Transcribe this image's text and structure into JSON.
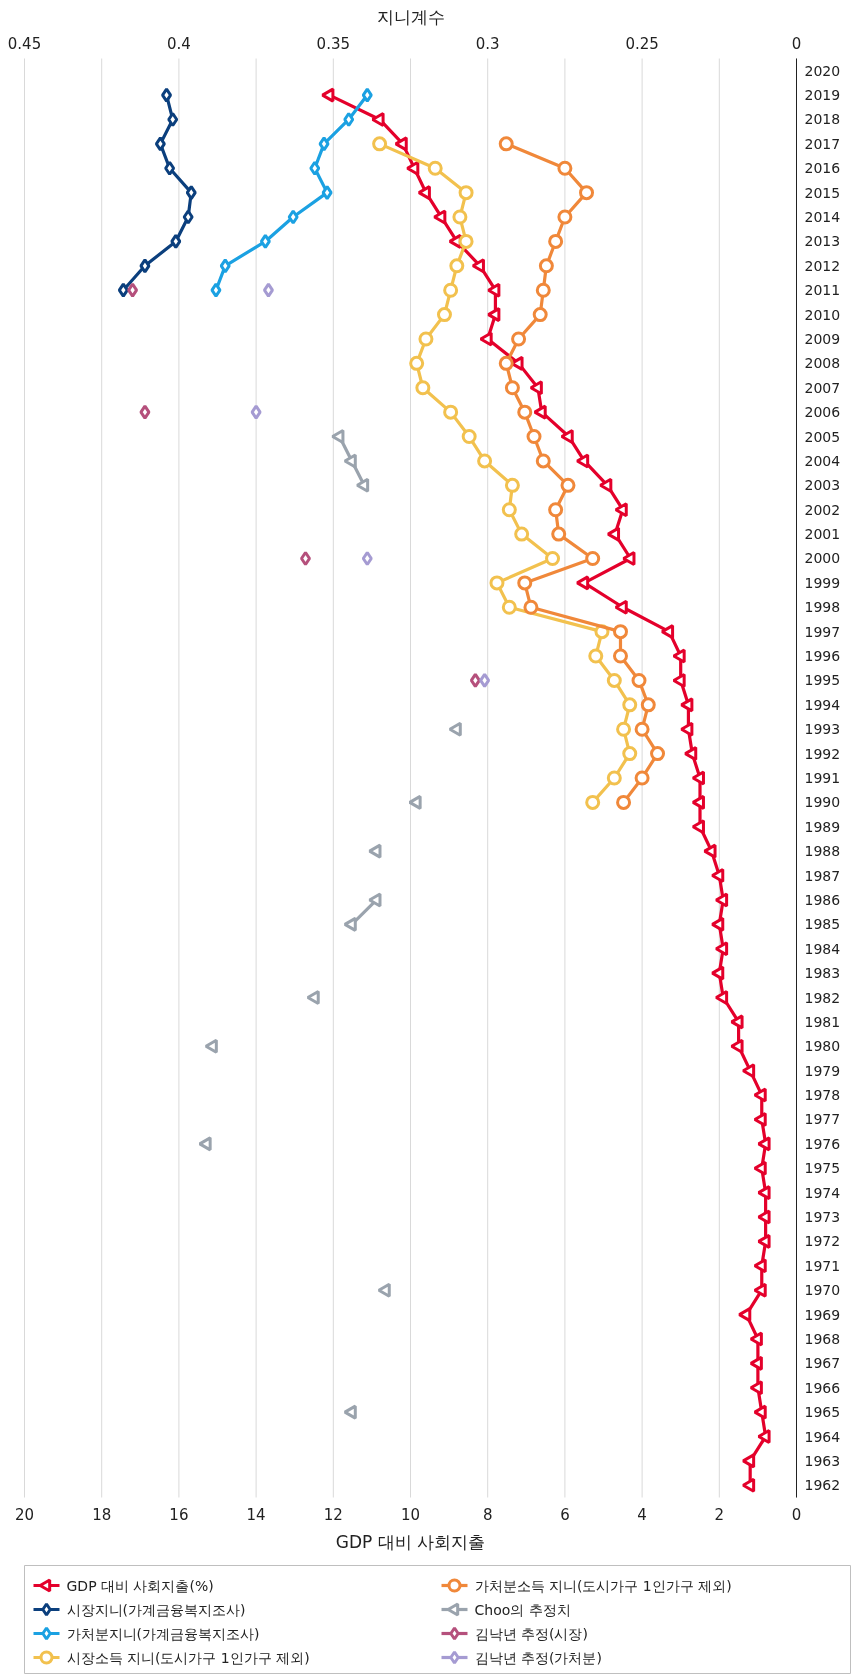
{
  "chart_data": {
    "type": "line",
    "orientation": "horizontal",
    "xlabel": "GDP 대비 사회지출",
    "x2label": "지니계수",
    "ylim": [
      1961.5,
      2020.5
    ],
    "yticks": [
      1962,
      1963,
      1964,
      1965,
      1966,
      1967,
      1968,
      1969,
      1970,
      1971,
      1972,
      1973,
      1974,
      1975,
      1976,
      1977,
      1978,
      1979,
      1980,
      1981,
      1982,
      1983,
      1984,
      1985,
      1986,
      1987,
      1988,
      1989,
      1990,
      1991,
      1992,
      1993,
      1994,
      1995,
      1996,
      1997,
      1998,
      1999,
      2000,
      2001,
      2002,
      2003,
      2004,
      2005,
      2006,
      2007,
      2008,
      2009,
      2010,
      2011,
      2012,
      2013,
      2014,
      2015,
      2016,
      2017,
      2018,
      2019,
      2020
    ],
    "xlim": [
      20,
      0
    ],
    "xticks": [
      0,
      2,
      4,
      6,
      8,
      10,
      12,
      14,
      16,
      18,
      20
    ],
    "x2lim": [
      0.45,
      0.2
    ],
    "x2ticks": [
      {
        "value": 0.2,
        "label": "0"
      },
      0.25,
      0.3,
      0.35,
      0.4,
      0.45
    ],
    "grid": "x",
    "legend": "bottom",
    "series": [
      {
        "name": "GDP 대비 사회지출(%)",
        "color": "#e4002b",
        "marker": "triangle",
        "x": [
          1962,
          1963,
          1964,
          1965,
          1966,
          1967,
          1968,
          1969,
          1970,
          1971,
          1972,
          1973,
          1974,
          1975,
          1976,
          1977,
          1978,
          1979,
          1980,
          1981,
          1982,
          1983,
          1984,
          1985,
          1986,
          1987,
          1988,
          1989,
          1990,
          1991,
          1992,
          1993,
          1994,
          1995,
          1996,
          1997,
          1998,
          1999,
          2000,
          2001,
          2002,
          2003,
          2004,
          2005,
          2006,
          2007,
          2008,
          2009,
          2010,
          2011,
          2012,
          2013,
          2014,
          2015,
          2016,
          2017,
          2018,
          2019
        ],
        "values": [
          1.2,
          1.2,
          0.8,
          0.9,
          1.0,
          1.0,
          1.0,
          1.3,
          0.9,
          0.9,
          0.8,
          0.8,
          0.8,
          0.9,
          0.8,
          0.9,
          0.9,
          1.2,
          1.5,
          1.5,
          1.9,
          2.0,
          1.9,
          2.0,
          1.9,
          2.0,
          2.2,
          2.5,
          2.5,
          2.5,
          2.7,
          2.8,
          2.8,
          3.0,
          3.0,
          3.3,
          4.5,
          5.5,
          4.3,
          4.7,
          4.5,
          4.9,
          5.5,
          5.9,
          6.6,
          6.7,
          7.2,
          8.0,
          7.8,
          7.8,
          8.2,
          8.8,
          9.2,
          9.6,
          9.9,
          10.2,
          10.8,
          12.1
        ]
      },
      {
        "name": "시장지니(가계금융복지조사)",
        "color": "#0b3f7d",
        "marker": "diamond",
        "axis": "x2",
        "x": [
          2011,
          2012,
          2013,
          2014,
          2015,
          2016,
          2017,
          2018,
          2019
        ],
        "values": [
          0.418,
          0.411,
          0.401,
          0.397,
          0.396,
          0.403,
          0.406,
          0.402,
          0.404
        ]
      },
      {
        "name": "가처분지니(가계금융복지조사)",
        "color": "#1ba1e2",
        "marker": "diamond",
        "axis": "x2",
        "x": [
          2011,
          2012,
          2013,
          2014,
          2015,
          2016,
          2017,
          2018,
          2019
        ],
        "values": [
          0.388,
          0.385,
          0.372,
          0.363,
          0.352,
          0.356,
          0.353,
          0.345,
          0.339
        ]
      },
      {
        "name": "시장소득 지니(도시가구 1인가구 제외)",
        "color": "#f2c14e",
        "marker": "circle",
        "axis": "x2",
        "x": [
          1990,
          1991,
          1992,
          1993,
          1994,
          1995,
          1996,
          1997,
          1998,
          1999,
          2000,
          2001,
          2002,
          2003,
          2004,
          2005,
          2006,
          2007,
          2008,
          2009,
          2010,
          2011,
          2012,
          2013,
          2014,
          2015,
          2016,
          2017
        ],
        "values": [
          0.266,
          0.259,
          0.254,
          0.256,
          0.254,
          0.259,
          0.265,
          0.263,
          0.293,
          0.297,
          0.279,
          0.289,
          0.293,
          0.292,
          0.301,
          0.306,
          0.312,
          0.321,
          0.323,
          0.32,
          0.314,
          0.312,
          0.31,
          0.307,
          0.309,
          0.307,
          0.317,
          0.335
        ]
      },
      {
        "name": "가처분소득 지니(도시가구 1인가구 제외)",
        "color": "#f0883a",
        "marker": "circle",
        "axis": "x2",
        "x": [
          1990,
          1991,
          1992,
          1993,
          1994,
          1995,
          1996,
          1997,
          1998,
          1999,
          2000,
          2001,
          2002,
          2003,
          2004,
          2005,
          2006,
          2007,
          2008,
          2009,
          2010,
          2011,
          2012,
          2013,
          2014,
          2015,
          2016,
          2017
        ],
        "values": [
          0.256,
          0.25,
          0.245,
          0.25,
          0.248,
          0.251,
          0.257,
          0.257,
          0.286,
          0.288,
          0.266,
          0.277,
          0.278,
          0.274,
          0.282,
          0.285,
          0.288,
          0.292,
          0.294,
          0.29,
          0.283,
          0.282,
          0.281,
          0.278,
          0.275,
          0.268,
          0.275,
          0.294
        ]
      },
      {
        "name": "Choo의 추정치",
        "color": "#9aa3ad",
        "marker": "triangle",
        "axis": "x2",
        "x": [
          1965,
          1966,
          1967,
          1968,
          1969,
          1970,
          1971,
          1972,
          1973,
          1974,
          1975,
          1976,
          1977,
          1978,
          1979,
          1980,
          1981,
          1982,
          1983,
          1984,
          1985,
          1986,
          1987,
          1988,
          1989,
          1990,
          1991,
          1992,
          1993,
          1994,
          1995,
          1996,
          1997,
          1998,
          1999,
          2000,
          2001,
          2002,
          2003,
          2004,
          2005
        ],
        "values": [
          0.344,
          null,
          null,
          null,
          null,
          0.333,
          null,
          null,
          null,
          null,
          null,
          0.391,
          null,
          null,
          null,
          0.389,
          null,
          0.356,
          null,
          null,
          0.344,
          0.336,
          null,
          0.336,
          null,
          0.323,
          null,
          null,
          0.31,
          null,
          null,
          null,
          null,
          null,
          null,
          null,
          null,
          null,
          0.34,
          0.344,
          0.348
        ]
      },
      {
        "name": "김낙년 추정(시장)",
        "type": "scatter",
        "color": "#b5507c",
        "marker": "diamond",
        "axis": "x2",
        "x": [
          1995,
          1996,
          1997,
          1998,
          1999,
          2000,
          2001,
          2002,
          2003,
          2004,
          2005,
          2006,
          2007,
          2008,
          2009,
          2010,
          2011
        ],
        "values": [
          0.304,
          null,
          null,
          null,
          null,
          0.359,
          null,
          null,
          null,
          null,
          null,
          0.411,
          null,
          null,
          null,
          null,
          0.415
        ]
      },
      {
        "name": "김낙년 추정(가처분)",
        "type": "scatter",
        "color": "#a59bd2",
        "marker": "diamond",
        "axis": "x2",
        "x": [
          1995,
          1996,
          1997,
          1998,
          1999,
          2000,
          2001,
          2002,
          2003,
          2004,
          2005,
          2006,
          2007,
          2008,
          2009,
          2010,
          2011
        ],
        "values": [
          0.301,
          null,
          null,
          null,
          null,
          0.339,
          null,
          null,
          null,
          null,
          null,
          0.375,
          null,
          null,
          null,
          null,
          0.371
        ]
      }
    ]
  }
}
